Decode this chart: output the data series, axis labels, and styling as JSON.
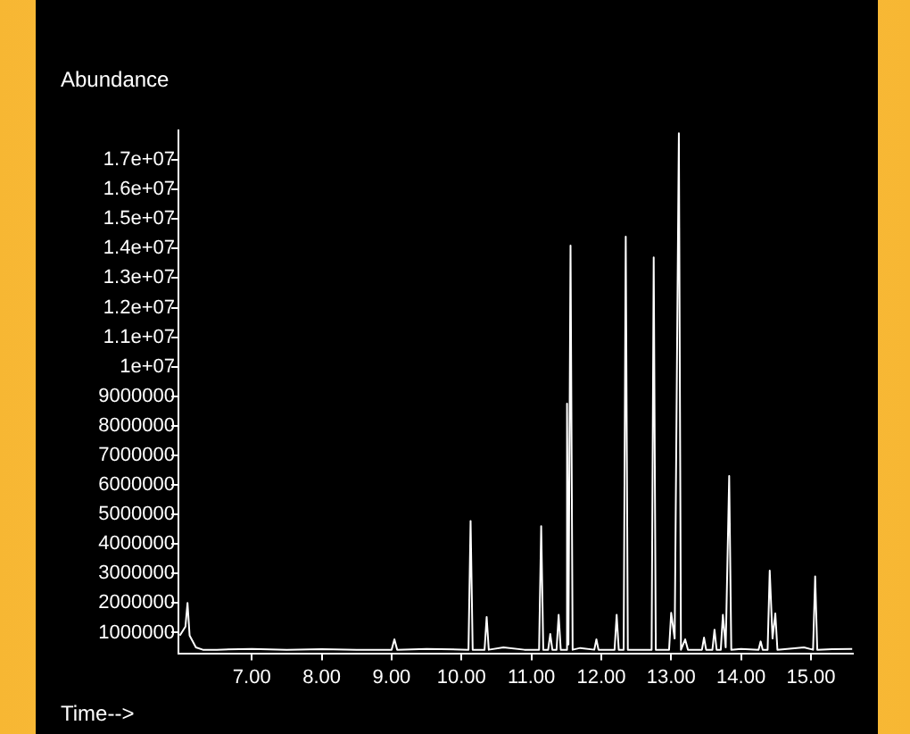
{
  "chart_data": {
    "type": "line",
    "xlabel": "Time-->",
    "ylabel": "Abundance",
    "xlim": [
      5.95,
      15.6
    ],
    "ylim": [
      300000,
      18000000
    ],
    "xticks": [
      {
        "value": 7,
        "label": "7.00"
      },
      {
        "value": 8,
        "label": "8.00"
      },
      {
        "value": 9,
        "label": "9.00"
      },
      {
        "value": 10,
        "label": "10.00"
      },
      {
        "value": 11,
        "label": "11.00"
      },
      {
        "value": 12,
        "label": "12.00"
      },
      {
        "value": 13,
        "label": "13.00"
      },
      {
        "value": 14,
        "label": "14.00"
      },
      {
        "value": 15,
        "label": "15.00"
      }
    ],
    "yticks": [
      1000000,
      2000000,
      3000000,
      4000000,
      5000000,
      6000000,
      7000000,
      8000000,
      9000000,
      {
        "value": 10000000,
        "label": "1e+07"
      },
      {
        "value": 11000000,
        "label": "1.1e+07"
      },
      {
        "value": 12000000,
        "label": "1.2e+07"
      },
      {
        "value": 13000000,
        "label": "1.3e+07"
      },
      {
        "value": 14000000,
        "label": "1.4e+07"
      },
      {
        "value": 15000000,
        "label": "1.5e+07"
      },
      {
        "value": 16000000,
        "label": "1.6e+07"
      },
      {
        "value": 17000000,
        "label": "1.7e+07"
      }
    ],
    "grid": false,
    "legend": false,
    "marker": "none",
    "line_style": "solid",
    "series": [
      {
        "color": "#ffffff",
        "x": [
          5.97,
          6.05,
          6.08,
          6.11,
          6.2,
          6.3,
          6.5,
          7.0,
          7.5,
          8.0,
          8.5,
          9.0,
          9.04,
          9.08,
          9.5,
          10.1,
          10.13,
          10.16,
          10.33,
          10.36,
          10.39,
          10.6,
          10.9,
          11.11,
          11.14,
          11.17,
          11.24,
          11.27,
          11.3,
          11.36,
          11.39,
          11.42,
          11.49,
          11.51,
          11.53,
          11.56,
          11.59,
          11.7,
          11.9,
          11.93,
          11.96,
          12.19,
          12.22,
          12.25,
          12.32,
          12.35,
          12.38,
          12.72,
          12.75,
          12.78,
          12.97,
          13.0,
          13.05,
          13.11,
          13.14,
          13.2,
          13.24,
          13.44,
          13.47,
          13.5,
          13.59,
          13.62,
          13.65,
          13.71,
          13.74,
          13.78,
          13.83,
          13.86,
          14.0,
          14.25,
          14.28,
          14.31,
          14.38,
          14.41,
          14.45,
          14.49,
          14.52,
          14.9,
          15.03,
          15.06,
          15.09,
          15.3,
          15.59
        ],
        "values": [
          900000,
          1200000,
          2000000,
          900000,
          500000,
          420000,
          420000,
          450000,
          420000,
          440000,
          420000,
          420000,
          770000,
          420000,
          450000,
          420000,
          4780000,
          420000,
          420000,
          1530000,
          420000,
          500000,
          420000,
          420000,
          4600000,
          420000,
          420000,
          950000,
          420000,
          420000,
          1600000,
          420000,
          420000,
          8750000,
          600000,
          14100000,
          420000,
          480000,
          420000,
          770000,
          420000,
          420000,
          1600000,
          420000,
          420000,
          14400000,
          420000,
          420000,
          13700000,
          420000,
          420000,
          1670000,
          800000,
          17900000,
          420000,
          770000,
          420000,
          420000,
          830000,
          420000,
          420000,
          1100000,
          420000,
          420000,
          1600000,
          500000,
          6300000,
          420000,
          450000,
          420000,
          700000,
          420000,
          420000,
          3100000,
          800000,
          1650000,
          420000,
          500000,
          420000,
          2900000,
          420000,
          440000,
          450000
        ]
      }
    ]
  }
}
